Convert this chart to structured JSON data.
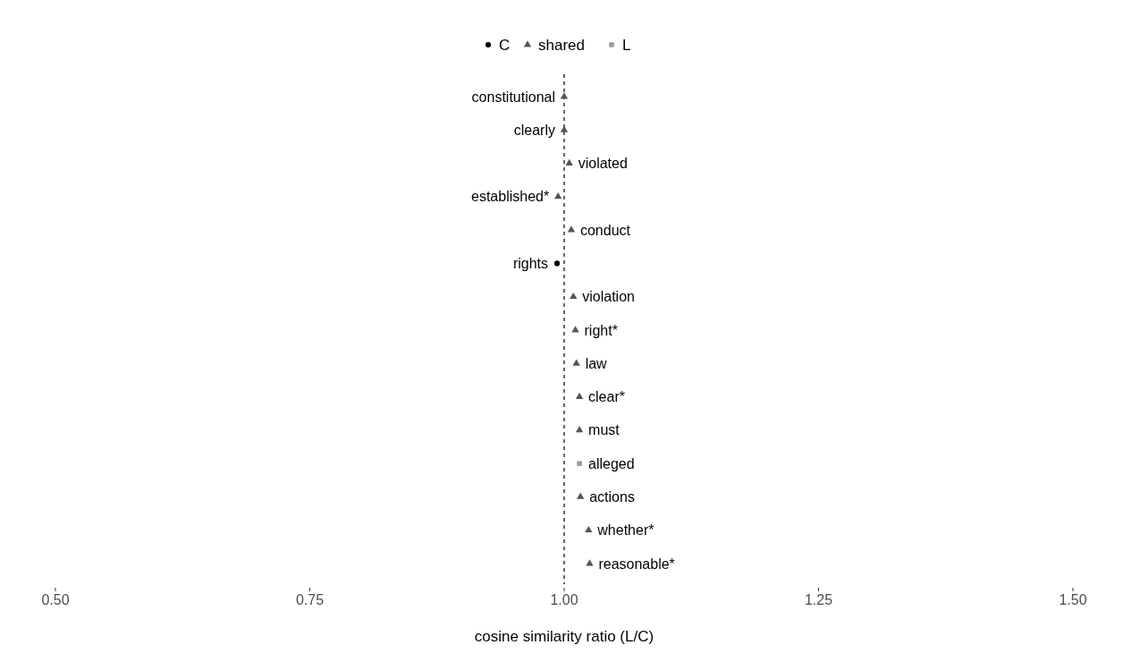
{
  "chart_data": {
    "type": "scatter",
    "orientation": "horizontal",
    "xlabel": "cosine similarity ratio (L/C)",
    "categories": [
      "constitutional",
      "clearly",
      "violated",
      "established*",
      "conduct",
      "rights",
      "violation",
      "right*",
      "law",
      "clear*",
      "must",
      "alleged",
      "actions",
      "whether*",
      "reasonable*"
    ],
    "series": [
      {
        "name": "C",
        "color": "#000000",
        "marker": "circle",
        "values": [
          null,
          null,
          null,
          null,
          null,
          0.993,
          null,
          null,
          null,
          null,
          null,
          null,
          null,
          null,
          null
        ]
      },
      {
        "name": "shared",
        "color": "#555555",
        "marker": "triangle",
        "values": [
          1.0,
          1.0,
          1.005,
          0.994,
          1.007,
          null,
          1.009,
          1.011,
          1.012,
          1.015,
          1.015,
          null,
          1.016,
          1.024,
          1.025
        ]
      },
      {
        "name": "L",
        "color": "#999999",
        "marker": "square",
        "values": [
          null,
          null,
          null,
          null,
          null,
          null,
          null,
          null,
          null,
          null,
          null,
          1.015,
          null,
          null,
          null
        ]
      }
    ],
    "xlim": [
      0.5,
      1.5
    ],
    "xticks": [
      {
        "value": 0.5,
        "label": "0.50"
      },
      {
        "value": 0.75,
        "label": "0.75"
      },
      {
        "value": 1.0,
        "label": "1.00"
      },
      {
        "value": 1.25,
        "label": "1.25"
      },
      {
        "value": 1.5,
        "label": "1.50"
      }
    ],
    "ref_lines": [
      {
        "axis": "x",
        "value": 1.0,
        "line_style": "dashed",
        "color": "#000000"
      }
    ],
    "legend": "top",
    "grid": false
  }
}
